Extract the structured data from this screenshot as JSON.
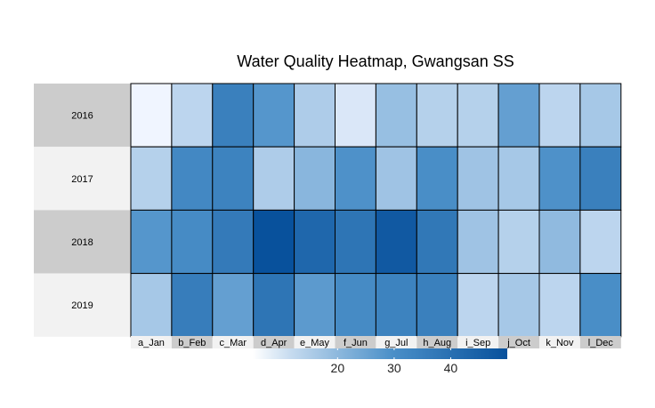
{
  "chart_data": {
    "type": "heatmap",
    "title": "Water Quality Heatmap, Gwangsan SS",
    "rows": [
      "2016",
      "2017",
      "2018",
      "2019"
    ],
    "columns": [
      "a_Jan",
      "b_Feb",
      "c_Mar",
      "d_Apr",
      "e_May",
      "f_Jun",
      "g_Jul",
      "h_Aug",
      "i_Sep",
      "j_Oct",
      "k_Nov",
      "l_Dec"
    ],
    "values": [
      [
        5,
        12,
        33,
        26,
        14,
        8,
        17,
        13,
        13,
        24,
        12,
        15
      ],
      [
        13,
        30,
        32,
        14,
        19,
        27,
        16,
        28,
        16,
        15,
        27,
        33
      ],
      [
        26,
        29,
        35,
        50,
        42,
        37,
        47,
        36,
        16,
        13,
        18,
        12
      ],
      [
        15,
        34,
        24,
        37,
        25,
        29,
        32,
        33,
        12,
        15,
        12,
        28
      ]
    ],
    "colorbar": {
      "min": 5,
      "max": 50,
      "ticks": [
        20,
        30,
        40
      ],
      "low_color": "#f0f5ff",
      "high_color": "#08519c"
    },
    "row_strip_colors": [
      "#cccccc",
      "#f2f2f2",
      "#cccccc",
      "#f2f2f2"
    ],
    "column_strip_colors": [
      "#f2f2f2",
      "#cccccc",
      "#f2f2f2",
      "#cccccc",
      "#f2f2f2",
      "#cccccc",
      "#f2f2f2",
      "#cccccc",
      "#f2f2f2",
      "#cccccc",
      "#f2f2f2",
      "#cccccc"
    ]
  }
}
